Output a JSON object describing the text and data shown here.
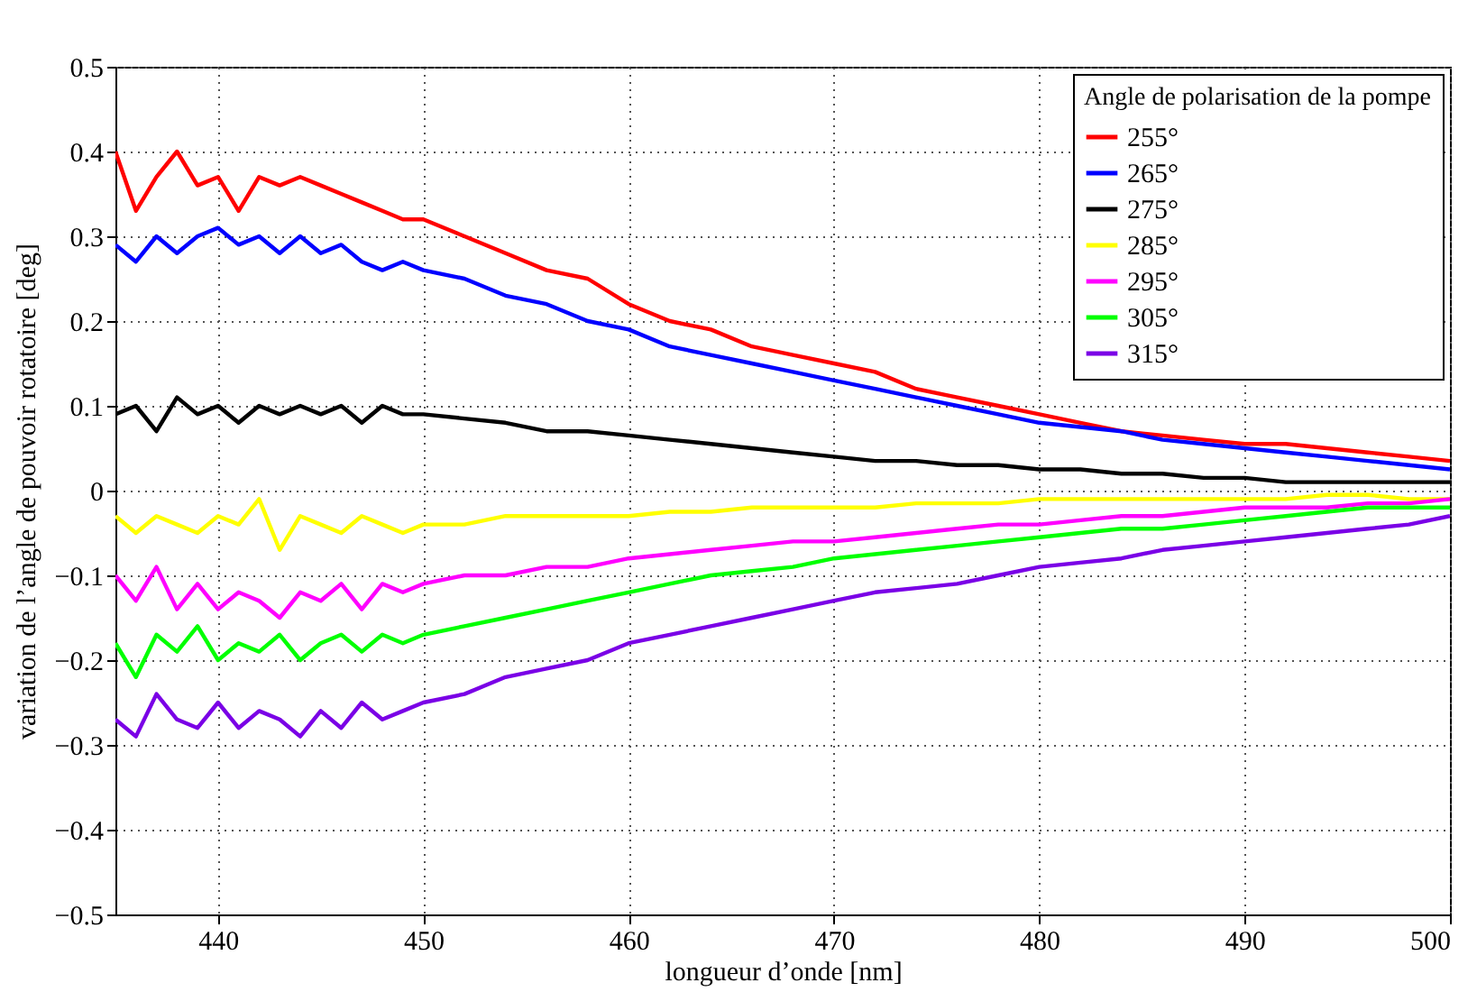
{
  "chart_data": {
    "type": "line",
    "xlabel": "longueur d’onde [nm]",
    "ylabel": "variation de l’angle de pouvoir rotatoire [deg]",
    "legend_title": "Angle de polarisation de la pompe",
    "legend": "top right",
    "grid": true,
    "x": [
      435,
      436,
      437,
      438,
      439,
      440,
      441,
      442,
      443,
      444,
      445,
      446,
      447,
      448,
      449,
      450,
      452,
      454,
      456,
      458,
      460,
      462,
      464,
      466,
      468,
      470,
      472,
      474,
      476,
      478,
      480,
      482,
      484,
      486,
      488,
      490,
      492,
      494,
      496,
      498,
      500
    ],
    "xlim": [
      435,
      500
    ],
    "xticks": [
      440,
      450,
      460,
      470,
      480,
      490,
      500
    ],
    "ylim": [
      -0.5,
      0.5
    ],
    "yticks": [
      -0.5,
      -0.4,
      -0.3,
      -0.2,
      -0.1,
      0,
      0.1,
      0.2,
      0.3,
      0.4,
      0.5
    ],
    "series": [
      {
        "name": "255°",
        "color": "#ff0000",
        "values": [
          0.4,
          0.33,
          0.37,
          0.4,
          0.36,
          0.37,
          0.33,
          0.37,
          0.36,
          0.37,
          0.36,
          0.35,
          0.34,
          0.33,
          0.32,
          0.32,
          0.3,
          0.28,
          0.26,
          0.25,
          0.22,
          0.2,
          0.19,
          0.17,
          0.16,
          0.15,
          0.14,
          0.12,
          0.11,
          0.1,
          0.09,
          0.08,
          0.07,
          0.065,
          0.06,
          0.055,
          0.055,
          0.05,
          0.045,
          0.04,
          0.035
        ]
      },
      {
        "name": "265°",
        "color": "#0000ff",
        "values": [
          0.29,
          0.27,
          0.3,
          0.28,
          0.3,
          0.31,
          0.29,
          0.3,
          0.28,
          0.3,
          0.28,
          0.29,
          0.27,
          0.26,
          0.27,
          0.26,
          0.25,
          0.23,
          0.22,
          0.2,
          0.19,
          0.17,
          0.16,
          0.15,
          0.14,
          0.13,
          0.12,
          0.11,
          0.1,
          0.09,
          0.08,
          0.075,
          0.07,
          0.06,
          0.055,
          0.05,
          0.045,
          0.04,
          0.035,
          0.03,
          0.025
        ]
      },
      {
        "name": "275°",
        "color": "#000000",
        "values": [
          0.09,
          0.1,
          0.07,
          0.11,
          0.09,
          0.1,
          0.08,
          0.1,
          0.09,
          0.1,
          0.09,
          0.1,
          0.08,
          0.1,
          0.09,
          0.09,
          0.085,
          0.08,
          0.07,
          0.07,
          0.065,
          0.06,
          0.055,
          0.05,
          0.045,
          0.04,
          0.035,
          0.035,
          0.03,
          0.03,
          0.025,
          0.025,
          0.02,
          0.02,
          0.015,
          0.015,
          0.01,
          0.01,
          0.01,
          0.01,
          0.01
        ]
      },
      {
        "name": "285°",
        "color": "#ffff00",
        "values": [
          -0.03,
          -0.05,
          -0.03,
          -0.04,
          -0.05,
          -0.03,
          -0.04,
          -0.01,
          -0.07,
          -0.03,
          -0.04,
          -0.05,
          -0.03,
          -0.04,
          -0.05,
          -0.04,
          -0.04,
          -0.03,
          -0.03,
          -0.03,
          -0.03,
          -0.025,
          -0.025,
          -0.02,
          -0.02,
          -0.02,
          -0.02,
          -0.015,
          -0.015,
          -0.015,
          -0.01,
          -0.01,
          -0.01,
          -0.01,
          -0.01,
          -0.01,
          -0.01,
          -0.005,
          -0.005,
          -0.01,
          -0.01
        ]
      },
      {
        "name": "295°",
        "color": "#ff00ff",
        "values": [
          -0.1,
          -0.13,
          -0.09,
          -0.14,
          -0.11,
          -0.14,
          -0.12,
          -0.13,
          -0.15,
          -0.12,
          -0.13,
          -0.11,
          -0.14,
          -0.11,
          -0.12,
          -0.11,
          -0.1,
          -0.1,
          -0.09,
          -0.09,
          -0.08,
          -0.075,
          -0.07,
          -0.065,
          -0.06,
          -0.06,
          -0.055,
          -0.05,
          -0.045,
          -0.04,
          -0.04,
          -0.035,
          -0.03,
          -0.03,
          -0.025,
          -0.02,
          -0.02,
          -0.02,
          -0.015,
          -0.015,
          -0.01
        ]
      },
      {
        "name": "305°",
        "color": "#00ff00",
        "values": [
          -0.18,
          -0.22,
          -0.17,
          -0.19,
          -0.16,
          -0.2,
          -0.18,
          -0.19,
          -0.17,
          -0.2,
          -0.18,
          -0.17,
          -0.19,
          -0.17,
          -0.18,
          -0.17,
          -0.16,
          -0.15,
          -0.14,
          -0.13,
          -0.12,
          -0.11,
          -0.1,
          -0.095,
          -0.09,
          -0.08,
          -0.075,
          -0.07,
          -0.065,
          -0.06,
          -0.055,
          -0.05,
          -0.045,
          -0.045,
          -0.04,
          -0.035,
          -0.03,
          -0.025,
          -0.02,
          -0.02,
          -0.02
        ]
      },
      {
        "name": "315°",
        "color": "#7a00e6",
        "values": [
          -0.27,
          -0.29,
          -0.24,
          -0.27,
          -0.28,
          -0.25,
          -0.28,
          -0.26,
          -0.27,
          -0.29,
          -0.26,
          -0.28,
          -0.25,
          -0.27,
          -0.26,
          -0.25,
          -0.24,
          -0.22,
          -0.21,
          -0.2,
          -0.18,
          -0.17,
          -0.16,
          -0.15,
          -0.14,
          -0.13,
          -0.12,
          -0.115,
          -0.11,
          -0.1,
          -0.09,
          -0.085,
          -0.08,
          -0.07,
          -0.065,
          -0.06,
          -0.055,
          -0.05,
          -0.045,
          -0.04,
          -0.03
        ]
      }
    ]
  }
}
